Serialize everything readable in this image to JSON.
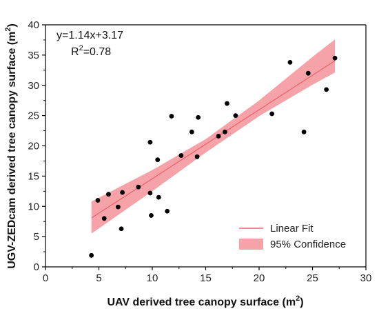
{
  "chart_data": {
    "type": "scatter",
    "xlabel": "UAV derived tree canopy surface (m",
    "xlabel_sup": "2",
    "xlabel_end": ")",
    "ylabel": "UGV-ZEDcam derived tree canopy surface (m",
    "ylabel_sup": "2",
    "ylabel_end": ")",
    "xlim": [
      0,
      30
    ],
    "ylim": [
      0,
      40
    ],
    "xticks": [
      0,
      5,
      10,
      15,
      20,
      25,
      30
    ],
    "yticks": [
      0,
      5,
      10,
      15,
      20,
      25,
      30,
      35,
      40
    ],
    "equation": "y=1.14x+3.17",
    "r2_label": "R",
    "r2_sup": "2",
    "r2_value": "=0.78",
    "fit": {
      "slope": 1.14,
      "intercept": 3.17,
      "x_range": [
        4.3,
        27.1
      ]
    },
    "confidence_band": {
      "x": [
        4.3,
        10,
        15,
        20,
        25,
        27.1
      ],
      "lower": [
        5.5,
        12.5,
        18.9,
        24.9,
        30.1,
        32.1
      ],
      "upper": [
        10.8,
        16.0,
        21.1,
        27.5,
        34.7,
        37.6
      ]
    },
    "points": [
      {
        "x": 4.3,
        "y": 1.9
      },
      {
        "x": 4.9,
        "y": 11.0
      },
      {
        "x": 5.5,
        "y": 8.0
      },
      {
        "x": 5.9,
        "y": 12.0
      },
      {
        "x": 6.8,
        "y": 9.9
      },
      {
        "x": 7.1,
        "y": 6.3
      },
      {
        "x": 7.2,
        "y": 12.3
      },
      {
        "x": 8.7,
        "y": 13.2
      },
      {
        "x": 9.8,
        "y": 20.6
      },
      {
        "x": 9.8,
        "y": 12.2
      },
      {
        "x": 9.9,
        "y": 8.5
      },
      {
        "x": 10.5,
        "y": 17.7
      },
      {
        "x": 10.6,
        "y": 11.5
      },
      {
        "x": 11.4,
        "y": 9.2
      },
      {
        "x": 11.8,
        "y": 24.9
      },
      {
        "x": 12.7,
        "y": 18.4
      },
      {
        "x": 13.7,
        "y": 22.3
      },
      {
        "x": 14.2,
        "y": 18.2
      },
      {
        "x": 14.3,
        "y": 24.7
      },
      {
        "x": 16.2,
        "y": 21.6
      },
      {
        "x": 16.8,
        "y": 22.3
      },
      {
        "x": 17.0,
        "y": 27.0
      },
      {
        "x": 17.8,
        "y": 25.0
      },
      {
        "x": 21.2,
        "y": 25.3
      },
      {
        "x": 22.9,
        "y": 33.8
      },
      {
        "x": 24.2,
        "y": 22.3
      },
      {
        "x": 24.6,
        "y": 32.0
      },
      {
        "x": 26.3,
        "y": 29.3
      },
      {
        "x": 27.1,
        "y": 34.5
      }
    ],
    "legend": {
      "position": "bottom-right",
      "entries": [
        "Linear Fit",
        "95% Confidence"
      ]
    },
    "colors": {
      "points": "#000000",
      "fit_line": "#e8646e",
      "band_fill": "#f5a3a8",
      "axis": "#000000"
    }
  }
}
